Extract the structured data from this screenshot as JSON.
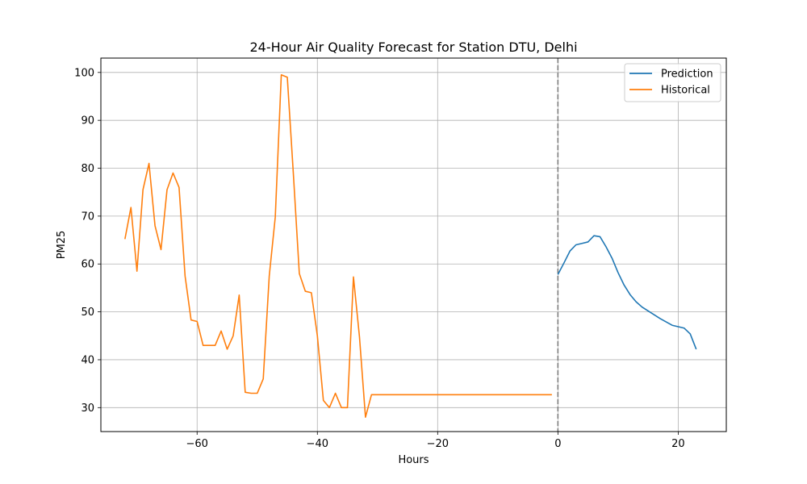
{
  "chart_data": {
    "type": "line",
    "title": "24-Hour Air Quality Forecast for Station DTU, Delhi",
    "xlabel": "Hours",
    "ylabel": "PM25",
    "xlim": [
      -76,
      28
    ],
    "ylim": [
      25,
      103
    ],
    "xticks": [
      -60,
      -40,
      -20,
      0,
      20
    ],
    "yticks": [
      30,
      40,
      50,
      60,
      70,
      80,
      90,
      100
    ],
    "xtick_labels": [
      "−60",
      "−40",
      "−20",
      "0",
      "20"
    ],
    "ytick_labels": [
      "30",
      "40",
      "50",
      "60",
      "70",
      "80",
      "90",
      "100"
    ],
    "grid": true,
    "legend_position": "top-right",
    "vline": {
      "x": 0,
      "style": "dashed",
      "color": "#7f7f7f"
    },
    "series": [
      {
        "name": "Prediction",
        "color": "#1f77b4",
        "x": [
          0,
          1,
          2,
          3,
          4,
          5,
          6,
          7,
          8,
          9,
          10,
          11,
          12,
          13,
          14,
          15,
          16,
          17,
          18,
          19,
          20,
          21,
          22,
          23
        ],
        "y": [
          57.8,
          60.2,
          62.7,
          64.0,
          64.3,
          64.6,
          65.9,
          65.7,
          63.6,
          61.2,
          58.2,
          55.6,
          53.6,
          52.1,
          51.0,
          50.2,
          49.4,
          48.6,
          47.9,
          47.2,
          46.9,
          46.6,
          45.4,
          42.2
        ]
      },
      {
        "name": "Historical",
        "color": "#ff7f0e",
        "x": [
          -72,
          -71,
          -70,
          -69,
          -68,
          -67,
          -66,
          -65,
          -64,
          -63,
          -62,
          -61,
          -60,
          -59,
          -58,
          -57,
          -56,
          -55,
          -54,
          -53,
          -52,
          -51,
          -50,
          -49,
          -48,
          -47,
          -46,
          -45,
          -44,
          -43,
          -42,
          -41,
          -40,
          -39,
          -38,
          -37,
          -36,
          -35,
          -34,
          -33,
          -32,
          -31,
          -30,
          -29,
          -28,
          -27,
          -26,
          -25,
          -24,
          -23,
          -22,
          -21,
          -20,
          -19,
          -18,
          -17,
          -16,
          -15,
          -14,
          -13,
          -12,
          -11,
          -10,
          -9,
          -8,
          -7,
          -6,
          -5,
          -4,
          -3,
          -2,
          -1
        ],
        "y": [
          65.2,
          71.8,
          58.5,
          75.5,
          81.0,
          68.0,
          63.0,
          75.5,
          79.0,
          76.0,
          57.5,
          48.3,
          48.0,
          43.0,
          43.0,
          43.0,
          46.0,
          42.2,
          45.0,
          53.5,
          33.2,
          33.0,
          33.0,
          36.0,
          57.5,
          69.8,
          99.5,
          99.0,
          79.0,
          58.0,
          54.3,
          54.0,
          45.0,
          31.5,
          30.0,
          33.0,
          30.0,
          30.0,
          57.3,
          44.8,
          28.0,
          32.7,
          32.7,
          32.7,
          32.7,
          32.7,
          32.7,
          32.7,
          32.7,
          32.7,
          32.7,
          32.7,
          32.7,
          32.7,
          32.7,
          32.7,
          32.7,
          32.7,
          32.7,
          32.7,
          32.7,
          32.7,
          32.7,
          32.7,
          32.7,
          32.7,
          32.7,
          32.7,
          32.7,
          32.7,
          32.7,
          32.7
        ]
      }
    ]
  }
}
